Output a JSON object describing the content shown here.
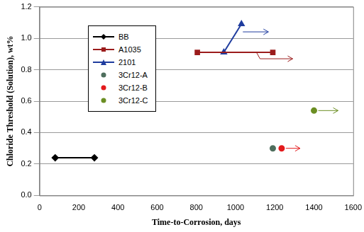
{
  "chart_data": {
    "type": "scatter",
    "x_label": "Time-to-Corrosion, days",
    "y_label": "Chloride Threshold (Solution), wt%",
    "xlim": [
      0,
      1600
    ],
    "xticks": [
      0,
      200,
      400,
      600,
      800,
      1000,
      1200,
      1400,
      1600
    ],
    "ylim": [
      0,
      1.2
    ],
    "yticks": [
      {
        "value": 0,
        "label": "0.0"
      },
      {
        "value": 0.2,
        "label": "0.2"
      },
      {
        "value": 0.4,
        "label": "0.4"
      },
      {
        "value": 0.6,
        "label": "0.6"
      },
      {
        "value": 0.8,
        "label": "0.8"
      },
      {
        "value": 1,
        "label": "1.0"
      },
      {
        "value": 1.2,
        "label": "1.2"
      }
    ],
    "grid": true,
    "legend": "upper left",
    "series": [
      {
        "name": "BB",
        "color": "#000000",
        "marker": "diamond",
        "line_style": "solid",
        "x": [
          80,
          280
        ],
        "values": [
          0.24,
          0.24
        ]
      },
      {
        "name": "A1035",
        "color": "#9b1c1c",
        "marker": "square",
        "line_style": "solid",
        "x": [
          805,
          1190
        ],
        "values": [
          0.91,
          0.91
        ]
      },
      {
        "name": "2101",
        "color": "#1f3c9e",
        "marker": "triangle",
        "line_style": "solid",
        "x": [
          940,
          1030
        ],
        "values": [
          0.91,
          1.09
        ]
      },
      {
        "name": "3Cr12-A",
        "color": "#4e6e5d",
        "marker": "circle",
        "line_style": "none",
        "x": [
          1190
        ],
        "values": [
          0.3
        ]
      },
      {
        "name": "3Cr12-B",
        "color": "#e31a1c",
        "marker": "circle",
        "line_style": "none",
        "x": [
          1235
        ],
        "values": [
          0.3
        ]
      },
      {
        "name": "3Cr12-C",
        "color": "#6b8e23",
        "marker": "circle",
        "line_style": "none",
        "x": [
          1400
        ],
        "values": [
          0.54
        ]
      }
    ]
  }
}
